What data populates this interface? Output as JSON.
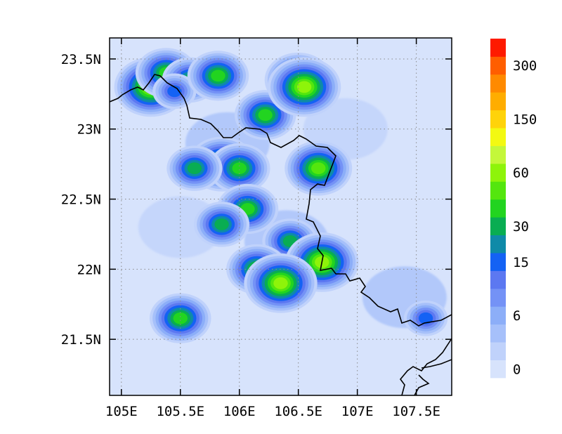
{
  "map": {
    "lon_range": [
      104.9,
      107.8
    ],
    "lat_range": [
      21.1,
      23.65
    ],
    "x_ticks": [
      {
        "value": 105.0,
        "label": "105E"
      },
      {
        "value": 105.5,
        "label": "105.5E"
      },
      {
        "value": 106.0,
        "label": "106E"
      },
      {
        "value": 106.5,
        "label": "106.5E"
      },
      {
        "value": 107.0,
        "label": "107E"
      },
      {
        "value": 107.5,
        "label": "107.5E"
      }
    ],
    "y_ticks": [
      {
        "value": 23.5,
        "label": "23.5N"
      },
      {
        "value": 23.0,
        "label": "23N"
      },
      {
        "value": 22.5,
        "label": "22.5N"
      },
      {
        "value": 22.0,
        "label": "22N"
      },
      {
        "value": 21.5,
        "label": "21.5N"
      }
    ],
    "grid": true,
    "background_color": "#d7e3fc"
  },
  "colorbar": {
    "colors": [
      "#d7e3fc",
      "#c0d2fb",
      "#a6c0fa",
      "#8caef8",
      "#7492f6",
      "#5c78f1",
      "#1462f4",
      "#0f8aa8",
      "#09ad52",
      "#22d420",
      "#54e60e",
      "#8ef40a",
      "#c4f73a",
      "#f3f912",
      "#ffd30a",
      "#ffad00",
      "#ff8a00",
      "#ff5e00",
      "#fe1a00"
    ],
    "labels": [
      {
        "index": 0,
        "text": "0"
      },
      {
        "index": 3,
        "text": "6"
      },
      {
        "index": 6,
        "text": "15"
      },
      {
        "index": 8,
        "text": "30"
      },
      {
        "index": 11,
        "text": "60"
      },
      {
        "index": 14,
        "text": "150"
      },
      {
        "index": 17,
        "text": "300"
      }
    ]
  },
  "precip_cells": [
    {
      "lon": 105.25,
      "lat": 23.3,
      "level": 11
    },
    {
      "lon": 105.38,
      "lat": 23.4,
      "level": 9
    },
    {
      "lon": 105.58,
      "lat": 23.35,
      "level": 8
    },
    {
      "lon": 105.45,
      "lat": 23.27,
      "level": 6
    },
    {
      "lon": 105.82,
      "lat": 23.38,
      "level": 9
    },
    {
      "lon": 106.22,
      "lat": 23.1,
      "level": 9
    },
    {
      "lon": 106.5,
      "lat": 23.35,
      "level": 10
    },
    {
      "lon": 106.55,
      "lat": 23.3,
      "level": 11
    },
    {
      "lon": 105.85,
      "lat": 22.75,
      "level": 10
    },
    {
      "lon": 106.0,
      "lat": 22.72,
      "level": 9
    },
    {
      "lon": 105.62,
      "lat": 22.72,
      "level": 8
    },
    {
      "lon": 106.67,
      "lat": 22.72,
      "level": 10
    },
    {
      "lon": 106.07,
      "lat": 22.43,
      "level": 9
    },
    {
      "lon": 105.85,
      "lat": 22.32,
      "level": 8
    },
    {
      "lon": 106.43,
      "lat": 22.2,
      "level": 8
    },
    {
      "lon": 106.7,
      "lat": 22.05,
      "level": 11
    },
    {
      "lon": 106.15,
      "lat": 22.0,
      "level": 9
    },
    {
      "lon": 106.35,
      "lat": 21.9,
      "level": 11
    },
    {
      "lon": 105.5,
      "lat": 21.65,
      "level": 9
    },
    {
      "lon": 107.58,
      "lat": 21.65,
      "level": 6
    }
  ],
  "light_regions": [
    {
      "lon": 105.9,
      "lat": 22.9,
      "level": 2
    },
    {
      "lon": 106.4,
      "lat": 22.2,
      "level": 2
    },
    {
      "lon": 107.4,
      "lat": 21.8,
      "level": 2
    },
    {
      "lon": 106.9,
      "lat": 23.0,
      "level": 1
    },
    {
      "lon": 105.5,
      "lat": 22.3,
      "level": 1
    }
  ]
}
